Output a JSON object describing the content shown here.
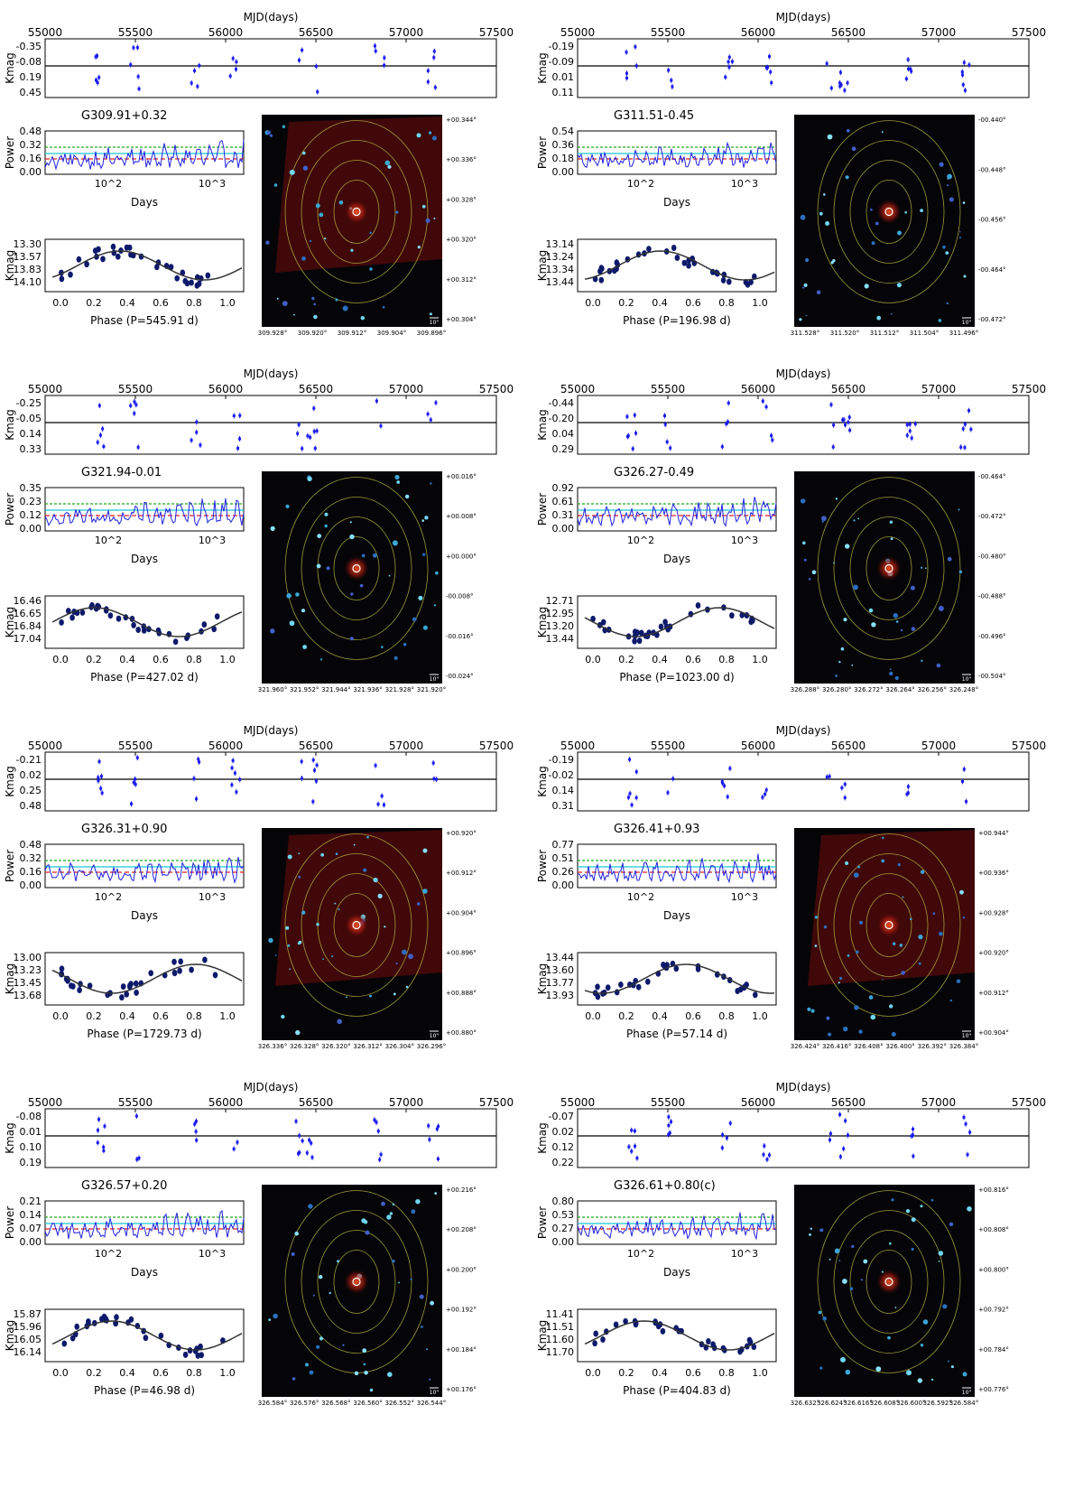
{
  "common": {
    "mjd_label": "MJD(days)",
    "mjd_ticks": [
      "55000",
      "55500",
      "56000",
      "56500",
      "57000",
      "57500"
    ],
    "kmag_label": "Kmag",
    "power_label": "Power",
    "days_label": "Days",
    "days_ticks": [
      "10^2",
      "10^3"
    ],
    "phase_ticks": [
      "0.0",
      "0.2",
      "0.4",
      "0.6",
      "0.8",
      "1.0"
    ],
    "scale_bar": "10\""
  },
  "chart_data": [
    {
      "type": "scatter",
      "source": "G309.91+0.32",
      "phase_label": "Phase (P=545.91 d)",
      "lc_ticks": [
        "-0.35",
        "-0.08",
        "0.19",
        "0.45"
      ],
      "power_ticks": [
        "0.48",
        "0.32",
        "0.16",
        "0.00"
      ],
      "phase_y_ticks": [
        "13.30",
        "13.57",
        "13.83",
        "14.10"
      ],
      "image_y_ticks": [
        "+00.344°",
        "+00.336°",
        "+00.328°",
        "+00.320°",
        "+00.312°",
        "+00.304°"
      ],
      "image_x_ticks": [
        "309.928°",
        "309.920°",
        "309.912°",
        "309.904°",
        "309.896°"
      ]
    },
    {
      "type": "scatter",
      "source": "G311.51-0.45",
      "phase_label": "Phase (P=196.98 d)",
      "lc_ticks": [
        "-0.19",
        "-0.09",
        "0.01",
        "0.11"
      ],
      "power_ticks": [
        "0.54",
        "0.36",
        "0.18",
        "0.00"
      ],
      "phase_y_ticks": [
        "13.14",
        "13.24",
        "13.34",
        "13.44"
      ],
      "image_y_ticks": [
        "-00.440°",
        "-00.448°",
        "-00.456°",
        "-00.464°",
        "-00.472°"
      ],
      "image_x_ticks": [
        "311.528°",
        "311.520°",
        "311.512°",
        "311.504°",
        "311.496°"
      ]
    },
    {
      "type": "scatter",
      "source": "G321.94-0.01",
      "phase_label": "Phase (P=427.02 d)",
      "lc_ticks": [
        "-0.25",
        "-0.05",
        "0.14",
        "0.33"
      ],
      "power_ticks": [
        "0.35",
        "0.23",
        "0.12",
        "0.00"
      ],
      "phase_y_ticks": [
        "16.46",
        "16.65",
        "16.84",
        "17.04"
      ],
      "image_y_ticks": [
        "+00.016°",
        "+00.008°",
        "+00.000°",
        "-00.008°",
        "-00.016°",
        "-00.024°"
      ],
      "image_x_ticks": [
        "321.960°",
        "321.952°",
        "321.944°",
        "321.936°",
        "321.928°",
        "321.920°"
      ]
    },
    {
      "type": "scatter",
      "source": "G326.27-0.49",
      "phase_label": "Phase (P=1023.00 d)",
      "lc_ticks": [
        "-0.44",
        "-0.20",
        "0.04",
        "0.29"
      ],
      "power_ticks": [
        "0.92",
        "0.61",
        "0.31",
        "0.00"
      ],
      "phase_y_ticks": [
        "12.71",
        "12.95",
        "13.20",
        "13.44"
      ],
      "image_y_ticks": [
        "-00.464°",
        "-00.472°",
        "-00.480°",
        "-00.488°",
        "-00.496°",
        "-00.504°"
      ],
      "image_x_ticks": [
        "326.288°",
        "326.280°",
        "326.272°",
        "326.264°",
        "326.256°",
        "326.248°"
      ]
    },
    {
      "type": "scatter",
      "source": "G326.31+0.90",
      "phase_label": "Phase (P=1729.73 d)",
      "lc_ticks": [
        "-0.21",
        "0.02",
        "0.25",
        "0.48"
      ],
      "power_ticks": [
        "0.48",
        "0.32",
        "0.16",
        "0.00"
      ],
      "phase_y_ticks": [
        "13.00",
        "13.23",
        "13.45",
        "13.68"
      ],
      "image_y_ticks": [
        "+00.920°",
        "+00.912°",
        "+00.904°",
        "+00.896°",
        "+00.888°",
        "+00.880°"
      ],
      "image_x_ticks": [
        "326.336°",
        "326.328°",
        "326.320°",
        "326.312°",
        "326.304°",
        "326.296°"
      ]
    },
    {
      "type": "scatter",
      "source": "G326.41+0.93",
      "phase_label": "Phase (P=57.14 d)",
      "lc_ticks": [
        "-0.19",
        "-0.02",
        "0.14",
        "0.31"
      ],
      "power_ticks": [
        "0.77",
        "0.51",
        "0.26",
        "0.00"
      ],
      "phase_y_ticks": [
        "13.44",
        "13.60",
        "13.77",
        "13.93"
      ],
      "image_y_ticks": [
        "+00.944°",
        "+00.936°",
        "+00.928°",
        "+00.920°",
        "+00.912°",
        "+00.904°"
      ],
      "image_x_ticks": [
        "326.424°",
        "326.416°",
        "326.408°",
        "326.400°",
        "326.392°",
        "326.384°"
      ]
    },
    {
      "type": "scatter",
      "source": "G326.57+0.20",
      "phase_label": "Phase (P=46.98 d)",
      "lc_ticks": [
        "-0.08",
        "0.01",
        "0.10",
        "0.19"
      ],
      "power_ticks": [
        "0.21",
        "0.14",
        "0.07",
        "0.00"
      ],
      "phase_y_ticks": [
        "15.87",
        "15.96",
        "16.05",
        "16.14"
      ],
      "image_y_ticks": [
        "+00.216°",
        "+00.208°",
        "+00.200°",
        "+00.192°",
        "+00.184°",
        "+00.176°"
      ],
      "image_x_ticks": [
        "326.584°",
        "326.576°",
        "326.568°",
        "326.560°",
        "326.552°",
        "326.544°"
      ]
    },
    {
      "type": "scatter",
      "source": "G326.61+0.80(c)",
      "phase_label": "Phase (P=404.83 d)",
      "lc_ticks": [
        "-0.07",
        "0.02",
        "0.12",
        "0.22"
      ],
      "power_ticks": [
        "0.80",
        "0.53",
        "0.27",
        "0.00"
      ],
      "phase_y_ticks": [
        "11.41",
        "11.51",
        "11.60",
        "11.70"
      ],
      "image_y_ticks": [
        "+00.816°",
        "+00.808°",
        "+00.800°",
        "+00.792°",
        "+00.784°",
        "+00.776°"
      ],
      "image_x_ticks": [
        "326.632°",
        "326.624°",
        "326.616°",
        "326.608°",
        "326.600°",
        "326.592°",
        "326.584°"
      ]
    }
  ]
}
